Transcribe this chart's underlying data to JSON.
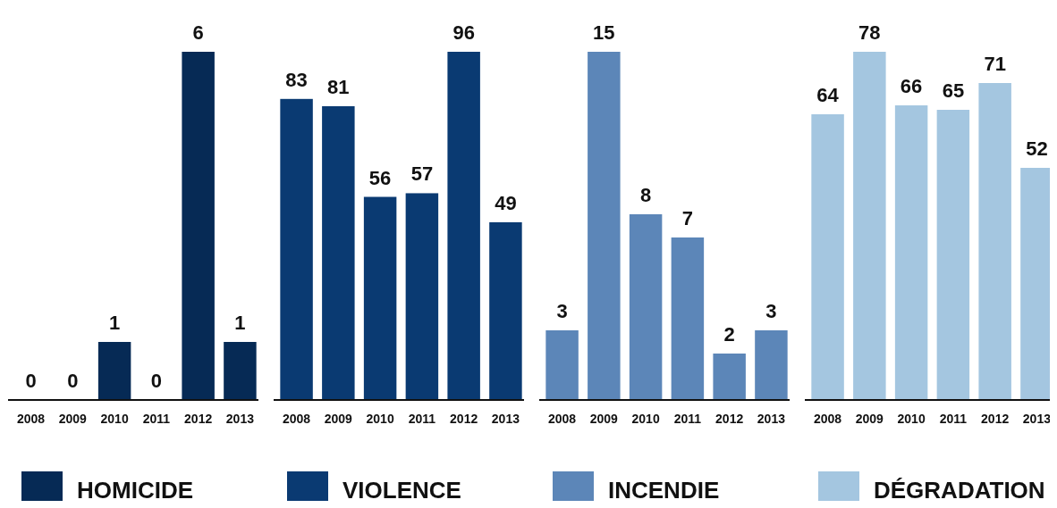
{
  "chart_data": [
    {
      "type": "bar",
      "categories": [
        "2008",
        "2009",
        "2010",
        "2011",
        "2012",
        "2013"
      ],
      "series": [
        {
          "name": "HOMICIDE",
          "color": "#062a55",
          "values": [
            0,
            0,
            1,
            0,
            6,
            1
          ]
        }
      ],
      "data_labels": true,
      "legend": "bottom"
    },
    {
      "type": "bar",
      "categories": [
        "2008",
        "2009",
        "2010",
        "2011",
        "2012",
        "2013"
      ],
      "series": [
        {
          "name": "VIOLENCE",
          "color": "#0a3a72",
          "values": [
            83,
            81,
            56,
            57,
            96,
            49
          ]
        }
      ],
      "data_labels": true,
      "legend": "bottom"
    },
    {
      "type": "bar",
      "categories": [
        "2008",
        "2009",
        "2010",
        "2011",
        "2012",
        "2013"
      ],
      "series": [
        {
          "name": "INCENDIE",
          "color": "#5c86b8",
          "values": [
            3,
            15,
            8,
            7,
            2,
            3
          ]
        }
      ],
      "data_labels": true,
      "legend": "bottom"
    },
    {
      "type": "bar",
      "categories": [
        "2008",
        "2009",
        "2010",
        "2011",
        "2012",
        "2013"
      ],
      "series": [
        {
          "name": "DÉGRADATION",
          "color": "#a4c6e0",
          "values": [
            64,
            78,
            66,
            65,
            71,
            52
          ]
        }
      ],
      "data_labels": true,
      "legend": "bottom"
    }
  ]
}
